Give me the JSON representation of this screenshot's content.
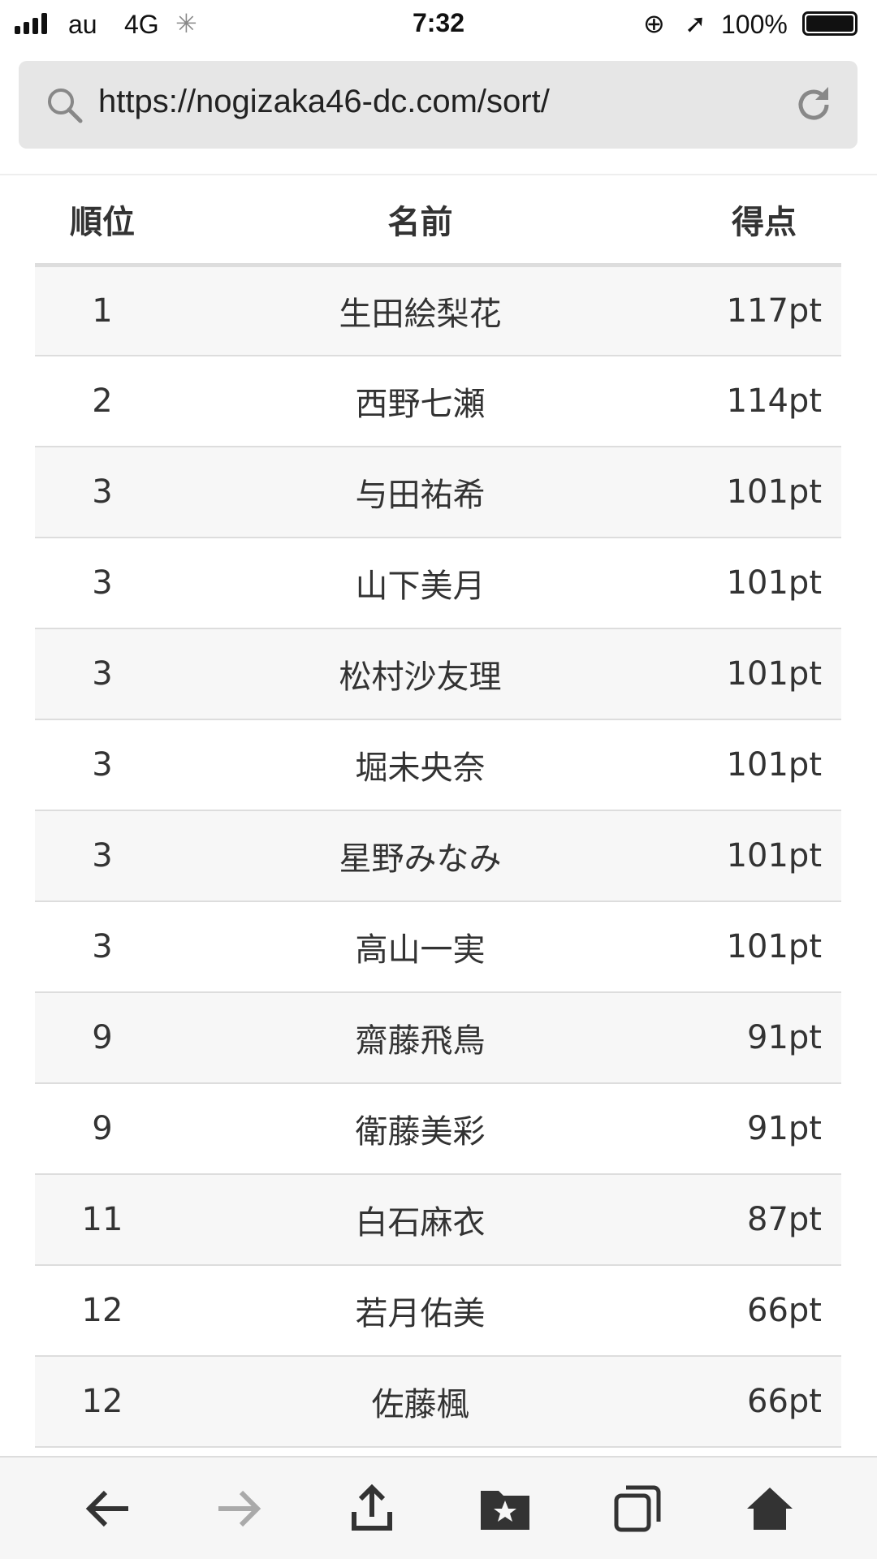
{
  "status_bar": {
    "carrier": "au",
    "network": "4G",
    "time": "7:32",
    "battery": "100%"
  },
  "browser": {
    "url": "https://nogizaka46-dc.com/sort/"
  },
  "table": {
    "headers": [
      "順位",
      "名前",
      "得点"
    ],
    "rows": [
      {
        "rank": "1",
        "name": "生田絵梨花",
        "score": "117pt"
      },
      {
        "rank": "2",
        "name": "西野七瀬",
        "score": "114pt"
      },
      {
        "rank": "3",
        "name": "与田祐希",
        "score": "101pt"
      },
      {
        "rank": "3",
        "name": "山下美月",
        "score": "101pt"
      },
      {
        "rank": "3",
        "name": "松村沙友理",
        "score": "101pt"
      },
      {
        "rank": "3",
        "name": "堀未央奈",
        "score": "101pt"
      },
      {
        "rank": "3",
        "name": "星野みなみ",
        "score": "101pt"
      },
      {
        "rank": "3",
        "name": "高山一実",
        "score": "101pt"
      },
      {
        "rank": "9",
        "name": "齋藤飛鳥",
        "score": "91pt"
      },
      {
        "rank": "9",
        "name": "衛藤美彩",
        "score": "91pt"
      },
      {
        "rank": "11",
        "name": "白石麻衣",
        "score": "87pt"
      },
      {
        "rank": "12",
        "name": "若月佑美",
        "score": "66pt"
      },
      {
        "rank": "12",
        "name": "佐藤楓",
        "score": "66pt"
      }
    ]
  },
  "toolbar": {
    "icons": [
      "back-arrow",
      "forward-arrow",
      "share",
      "bookmarks",
      "tabs",
      "home"
    ]
  }
}
